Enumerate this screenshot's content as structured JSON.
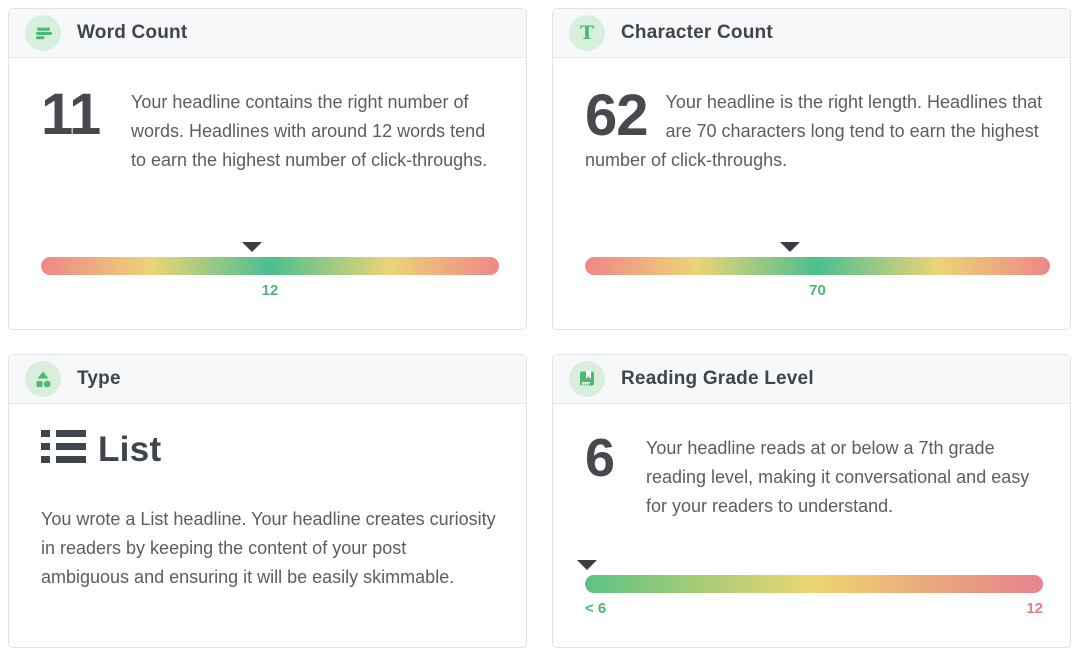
{
  "colors": {
    "accent_green": "#4db873",
    "icon_circle_bg": "#d9efdd",
    "label_green": "#4cb972",
    "label_red": "#ed7a84",
    "gauge_red": "#ee8787",
    "gauge_yellow": "#ecd477",
    "gauge_green": "#4bbf8f",
    "marker_gray": "#393e44",
    "header_bg": "#f7f8f9",
    "title_text": "#3f454d",
    "body_text": "#595e63"
  },
  "icons": {
    "character_count_glyph": "T"
  },
  "cards": {
    "word_count": {
      "title": "Word Count",
      "value": "11",
      "description": "Your headline contains the right number of words. Headlines with around 12 words tend to earn the highest number of click-throughs.",
      "target_label": "12",
      "marker_percent": 46
    },
    "character_count": {
      "title": "Character Count",
      "value": "62",
      "description": "Your headline is the right length. Headlines that are 70 characters long tend to earn the highest number of click-throughs.",
      "target_label": "70",
      "marker_percent": 44
    },
    "type": {
      "title": "Type",
      "value": "List",
      "description": "You wrote a List headline. Your headline creates curiosity in readers by keeping the content of your post ambiguous and ensuring it will be easily skimmable."
    },
    "reading_grade_level": {
      "title": "Reading Grade Level",
      "value": "6",
      "description": "Your headline reads at or below a 7th grade reading level, making it conversational and easy for your readers to understand.",
      "scale_min_label": "< 6",
      "scale_max_label": "12",
      "marker_percent": 0.5
    }
  }
}
